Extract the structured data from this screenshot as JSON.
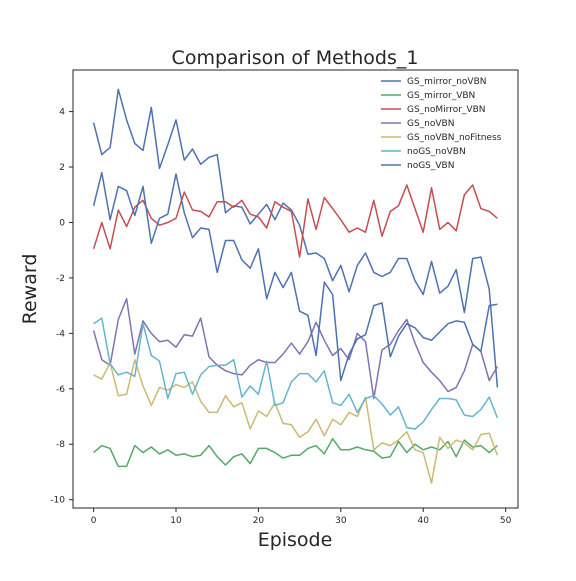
{
  "chart_data": {
    "type": "line",
    "title": "Comparison of Methods_1",
    "xlabel": "Episode",
    "ylabel": "Reward",
    "xlim": [
      -2.5,
      51.5
    ],
    "ylim": [
      -10.3,
      5.5
    ],
    "xticks": [
      0,
      10,
      20,
      30,
      40,
      50
    ],
    "yticks": [
      -10,
      -8,
      -6,
      -4,
      -2,
      0,
      2,
      4
    ],
    "legend_position": "top-right",
    "x": [
      0,
      1,
      2,
      3,
      4,
      5,
      6,
      7,
      8,
      9,
      10,
      11,
      12,
      13,
      14,
      15,
      16,
      17,
      18,
      19,
      20,
      21,
      22,
      23,
      24,
      25,
      26,
      27,
      28,
      29,
      30,
      31,
      32,
      33,
      34,
      35,
      36,
      37,
      38,
      39,
      40,
      41,
      42,
      43,
      44,
      45,
      46,
      47,
      48,
      49
    ],
    "series": [
      {
        "name": "GS_mirror_noVBN",
        "color": "#4c72b0",
        "values": [
          3.6,
          2.45,
          2.7,
          4.8,
          3.7,
          2.85,
          2.6,
          4.15,
          1.95,
          2.8,
          3.7,
          2.25,
          2.65,
          2.1,
          2.35,
          2.45,
          0.35,
          0.6,
          0.55,
          -0.05,
          0.3,
          0.65,
          0.1,
          0.7,
          0.45,
          -0.1,
          -1.15,
          -1.1,
          -1.3,
          -2.1,
          -1.55,
          -2.5,
          -1.55,
          -1.1,
          -1.8,
          -1.95,
          -1.8,
          -1.3,
          -1.3,
          -2.1,
          -2.6,
          -1.4,
          -2.55,
          -2.3,
          -1.7,
          -3.25,
          -1.3,
          -1.25,
          -2.4,
          -5.95
        ]
      },
      {
        "name": "GS_mirror_VBN",
        "color": "#55a868",
        "values": [
          -8.3,
          -8.05,
          -8.15,
          -8.8,
          -8.8,
          -8.05,
          -8.3,
          -8.1,
          -8.35,
          -8.2,
          -8.4,
          -8.35,
          -8.45,
          -8.4,
          -8.05,
          -8.45,
          -8.75,
          -8.45,
          -8.35,
          -8.7,
          -8.15,
          -8.15,
          -8.3,
          -8.5,
          -8.4,
          -8.4,
          -8.15,
          -8.05,
          -8.35,
          -7.8,
          -8.2,
          -8.2,
          -8.1,
          -8.2,
          -8.25,
          -8.5,
          -8.45,
          -7.9,
          -8.3,
          -8.0,
          -8.2,
          -8.1,
          -8.2,
          -7.9,
          -8.45,
          -7.85,
          -8.1,
          -8.05,
          -8.3,
          -8.05
        ]
      },
      {
        "name": "GS_noMirror_VBN",
        "color": "#c44e52",
        "values": [
          -0.95,
          0.0,
          -0.95,
          0.45,
          -0.15,
          0.55,
          0.8,
          0.15,
          -0.1,
          0.0,
          0.15,
          1.1,
          0.45,
          0.4,
          0.2,
          0.75,
          0.75,
          0.55,
          0.8,
          0.3,
          0.2,
          -0.2,
          0.75,
          0.55,
          0.4,
          -1.25,
          0.85,
          -0.25,
          0.9,
          0.5,
          0.1,
          -0.35,
          -0.2,
          -0.35,
          0.8,
          -0.5,
          0.4,
          0.6,
          1.35,
          0.5,
          -0.35,
          1.25,
          -0.25,
          0.0,
          -0.3,
          1.0,
          1.35,
          0.5,
          0.4,
          0.15
        ]
      },
      {
        "name": "GS_noVBN",
        "color": "#8172b2",
        "values": [
          -3.9,
          -4.95,
          -5.15,
          -3.5,
          -2.75,
          -4.75,
          -3.55,
          -4.0,
          -4.3,
          -4.25,
          -4.5,
          -4.05,
          -4.1,
          -3.45,
          -4.85,
          -5.15,
          -5.35,
          -5.45,
          -5.5,
          -5.15,
          -4.95,
          -5.05,
          -5.05,
          -4.75,
          -4.35,
          -4.75,
          -4.3,
          -3.6,
          -4.25,
          -4.8,
          -4.55,
          -4.95,
          -4.0,
          -4.3,
          -6.35,
          -4.6,
          -4.4,
          -3.9,
          -3.5,
          -4.35,
          -5.05,
          -5.4,
          -5.7,
          -6.1,
          -5.95,
          -5.35,
          -4.4,
          -4.65,
          -5.7,
          -5.2
        ]
      },
      {
        "name": "GS_noVBN_noFitness",
        "color": "#ccb974",
        "values": [
          -5.5,
          -5.65,
          -5.05,
          -6.25,
          -6.2,
          -4.95,
          -5.9,
          -6.6,
          -5.95,
          -6.05,
          -5.85,
          -5.95,
          -5.75,
          -6.45,
          -6.85,
          -6.85,
          -6.25,
          -6.65,
          -6.5,
          -7.45,
          -6.8,
          -7.0,
          -6.5,
          -7.25,
          -7.3,
          -7.75,
          -7.55,
          -7.1,
          -7.7,
          -7.1,
          -7.3,
          -6.85,
          -7.0,
          -6.3,
          -8.2,
          -7.95,
          -8.05,
          -7.85,
          -7.55,
          -8.2,
          -8.3,
          -9.4,
          -7.75,
          -8.15,
          -7.85,
          -7.95,
          -8.2,
          -7.65,
          -7.6,
          -8.4
        ]
      },
      {
        "name": "noGS_noVBN",
        "color": "#64b5cd",
        "values": [
          -3.65,
          -3.45,
          -5.1,
          -5.5,
          -5.4,
          -5.55,
          -3.65,
          -4.8,
          -5.0,
          -6.35,
          -5.45,
          -5.4,
          -6.2,
          -5.5,
          -5.2,
          -5.15,
          -5.15,
          -4.95,
          -6.3,
          -5.9,
          -6.2,
          -5.0,
          -6.6,
          -6.5,
          -5.75,
          -5.45,
          -5.45,
          -5.75,
          -5.35,
          -6.5,
          -6.6,
          -6.2,
          -6.85,
          -6.35,
          -6.25,
          -6.55,
          -6.95,
          -6.65,
          -7.4,
          -7.45,
          -7.2,
          -6.75,
          -6.35,
          -6.35,
          -6.4,
          -6.95,
          -7.0,
          -6.75,
          -6.3,
          -7.05
        ]
      },
      {
        "name": "noGS_VBN",
        "color": "#4c72b0",
        "values": [
          0.6,
          1.8,
          0.1,
          1.3,
          1.15,
          0.25,
          1.3,
          -0.75,
          0.15,
          0.3,
          1.75,
          0.35,
          -0.55,
          -0.2,
          -0.25,
          -1.8,
          -0.65,
          -0.65,
          -1.35,
          -1.65,
          -0.95,
          -2.75,
          -1.8,
          -2.35,
          -1.8,
          -3.2,
          -3.35,
          -4.8,
          -2.15,
          -2.6,
          -5.7,
          -4.75,
          -4.2,
          -4.05,
          -3.0,
          -2.9,
          -4.85,
          -4.1,
          -3.65,
          -3.8,
          -4.15,
          -4.25,
          -3.95,
          -3.65,
          -3.55,
          -3.6,
          -4.4,
          -4.65,
          -3.0,
          -2.95
        ]
      }
    ]
  }
}
